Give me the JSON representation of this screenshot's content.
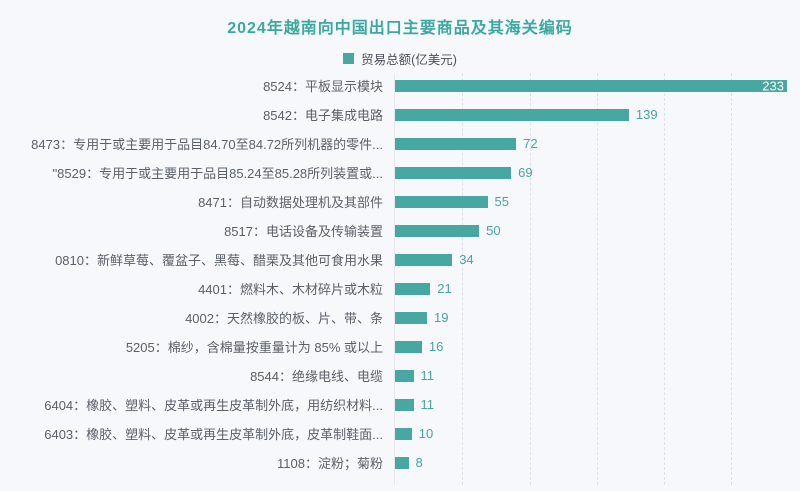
{
  "title": "2024年越南向中国出口主要商品及其海关编码",
  "legend": {
    "label": "贸易总额(亿美元)",
    "swatch_color": "#47a8a2"
  },
  "colors": {
    "background": "#f7f8fb",
    "title": "#3ba99f",
    "bar": "#47a8a2",
    "value_text": "#45a59f",
    "value_text_inside": "#ffffff",
    "category_text": "#5b5f69",
    "gridline": "#dfe2ea",
    "axis_line": "#e6e8ef"
  },
  "chart_data": {
    "type": "bar",
    "orientation": "horizontal",
    "title": "2024年越南向中国出口主要商品及其海关编码",
    "legend_entries": [
      "贸易总额(亿美元)"
    ],
    "legend_position": "top",
    "unit": "亿美元",
    "categories": [
      "8524：平板显示模块",
      "8542：电子集成电路",
      "8473：专用于或主要用于品目84.70至84.72所列机器的零件...",
      "\"8529：专用于或主要用于品目85.24至85.28所列装置或...",
      "8471：自动数据处理机及其部件",
      "8517：电话设备及传输装置",
      "0810：新鲜草莓、覆盆子、黑莓、醋栗及其他可食用水果",
      "4401：燃料木、木材碎片或木粒",
      "4002：天然橡胶的板、片、带、条",
      "5205：棉纱，含棉量按重量计为 85% 或以上",
      "8544：绝缘电线、电缆",
      "6404：橡胶、塑料、皮革或再生皮革制外底，用纺织材料...",
      "6403：橡胶、塑料、皮革或再生皮革制外底，皮革制鞋面...",
      "1108：淀粉；菊粉"
    ],
    "values": [
      233,
      139,
      72,
      69,
      55,
      50,
      34,
      21,
      19,
      16,
      11,
      11,
      10,
      8
    ],
    "xlim": [
      0,
      233
    ],
    "gridline_values": [
      40,
      80,
      120,
      160,
      200
    ],
    "grid": "vertical-dashed",
    "value_labels": "shown, outside bar end (inside bar for max value)"
  }
}
